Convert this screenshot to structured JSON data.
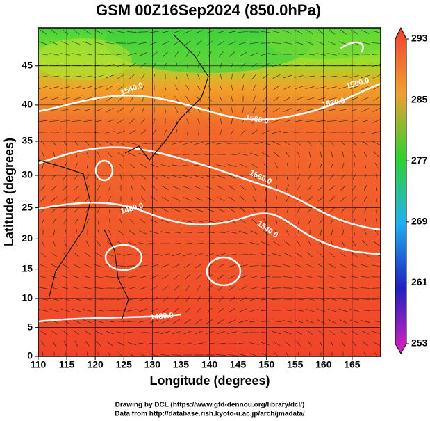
{
  "chart_data": {
    "type": "map",
    "title": "GSM 00Z16Sep2024 (850.0hPa)",
    "x_label": "Longitude (degrees)",
    "y_label": "Latitude  (degrees)",
    "projection": "mercator",
    "xlim": [
      110,
      170
    ],
    "ylim": [
      0,
      49.5
    ],
    "xticks": [
      110,
      115,
      120,
      125,
      130,
      135,
      140,
      145,
      150,
      155,
      160,
      165
    ],
    "yticks": [
      0,
      5,
      10,
      15,
      20,
      25,
      30,
      35,
      40,
      45
    ],
    "colorbar_lim": [
      253,
      293
    ],
    "colorbar_ticks": [
      293,
      285,
      277,
      269,
      261,
      253
    ],
    "contour_labels": [
      "1560.0",
      "1520.0",
      "1500.0",
      "1540.0",
      "1560.0",
      "1540.0",
      "1480.0",
      "1480.0"
    ],
    "credits": [
      "Drawing by DCL (https://www.gfd-dennou.org/library/dcl/)",
      "Data from http://database.rish.kyoto-u.ac.jp/arch/jmadata/"
    ]
  }
}
